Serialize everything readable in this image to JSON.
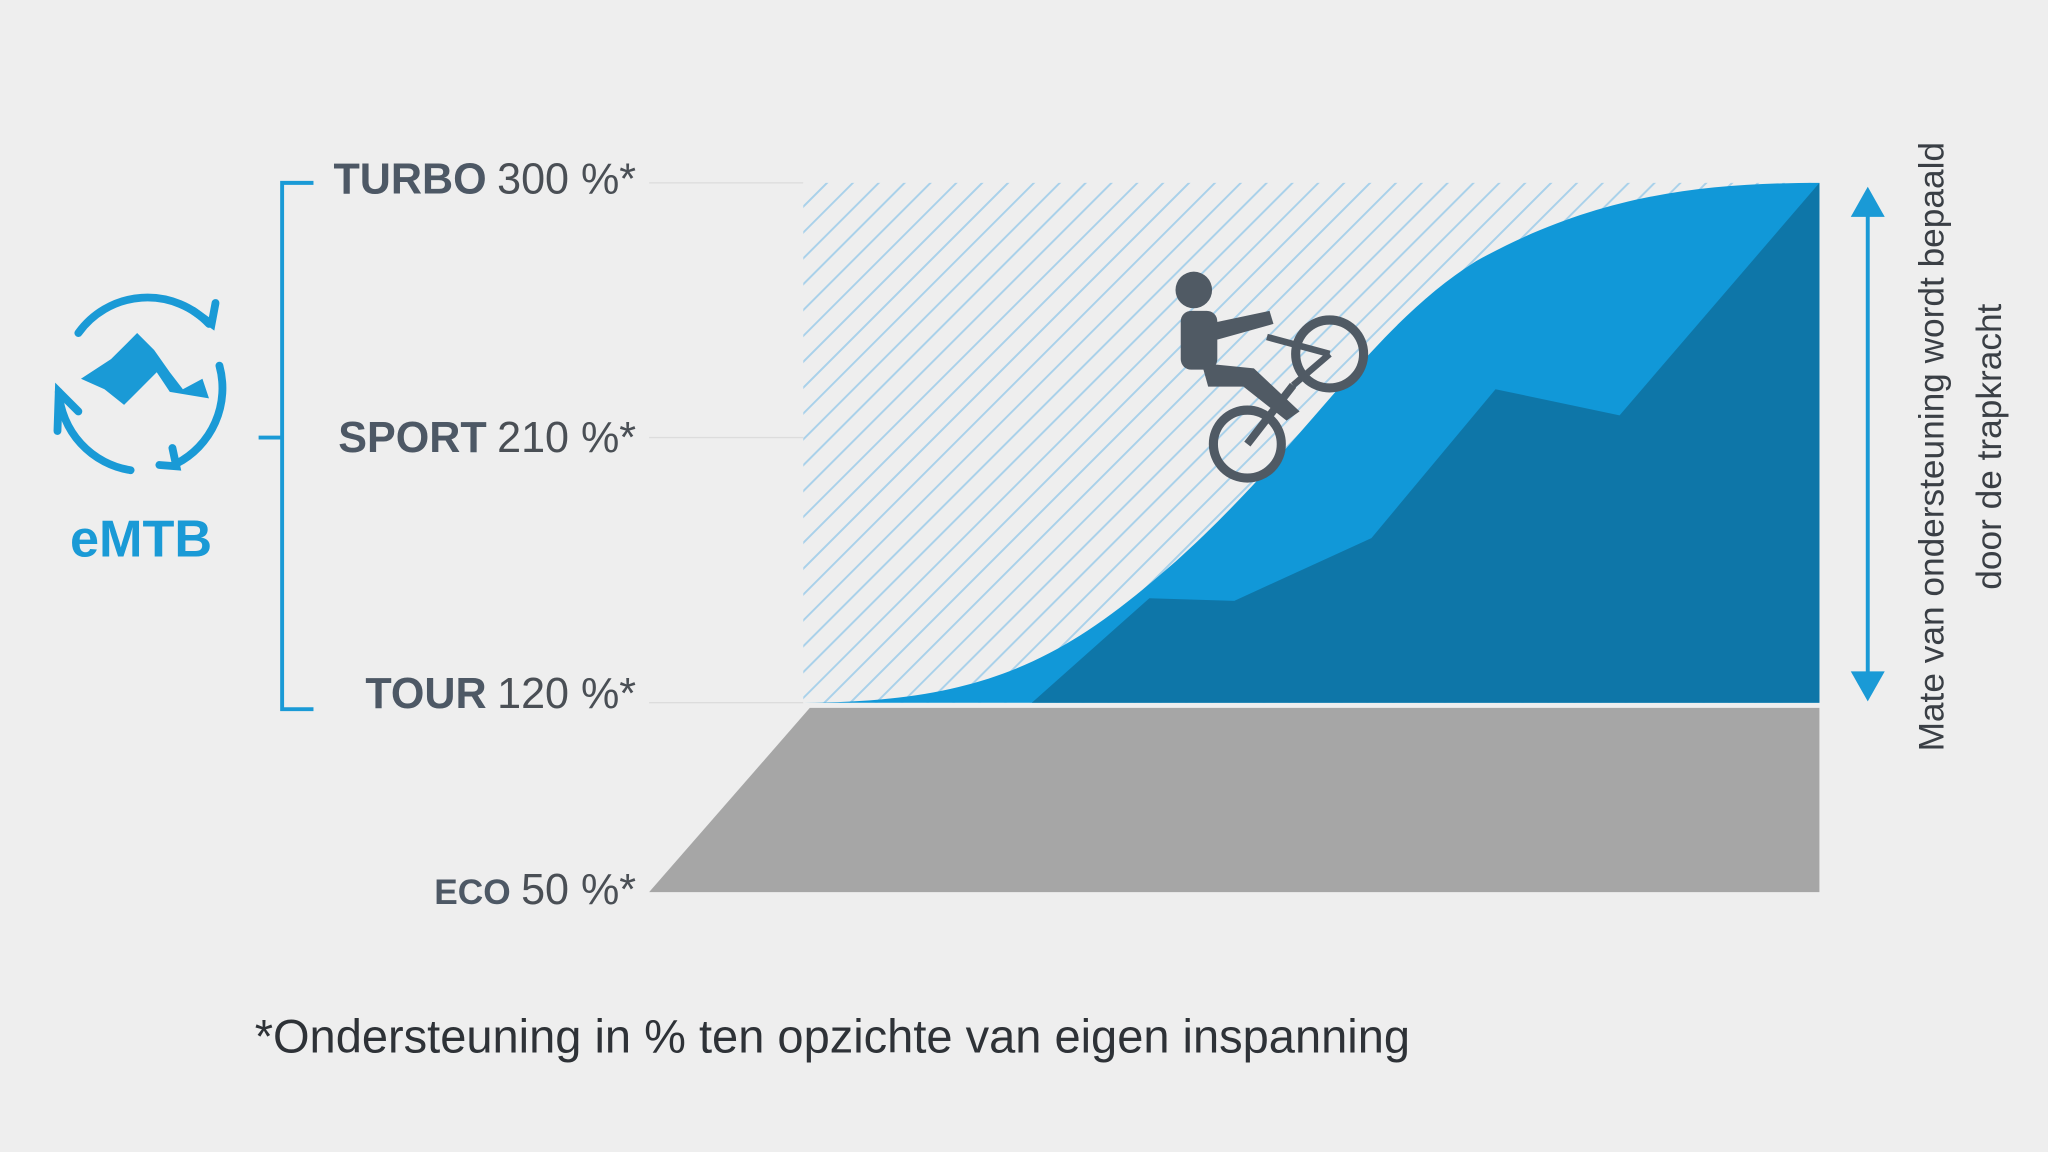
{
  "logo": {
    "label": "eMTB"
  },
  "levels": [
    {
      "name": "TURBO",
      "value": "300 %*"
    },
    {
      "name": "SPORT",
      "value": "210 %*"
    },
    {
      "name": "TOUR",
      "value": "120 %*"
    },
    {
      "name": "ECO",
      "value": "50 %*"
    }
  ],
  "axis_label": {
    "lines": [
      "Mate van ondersteuning wordt bepaald",
      "door de trapkracht"
    ]
  },
  "footnote": "*Ondersteuning in % ten opzichte van eigen inspanning"
}
